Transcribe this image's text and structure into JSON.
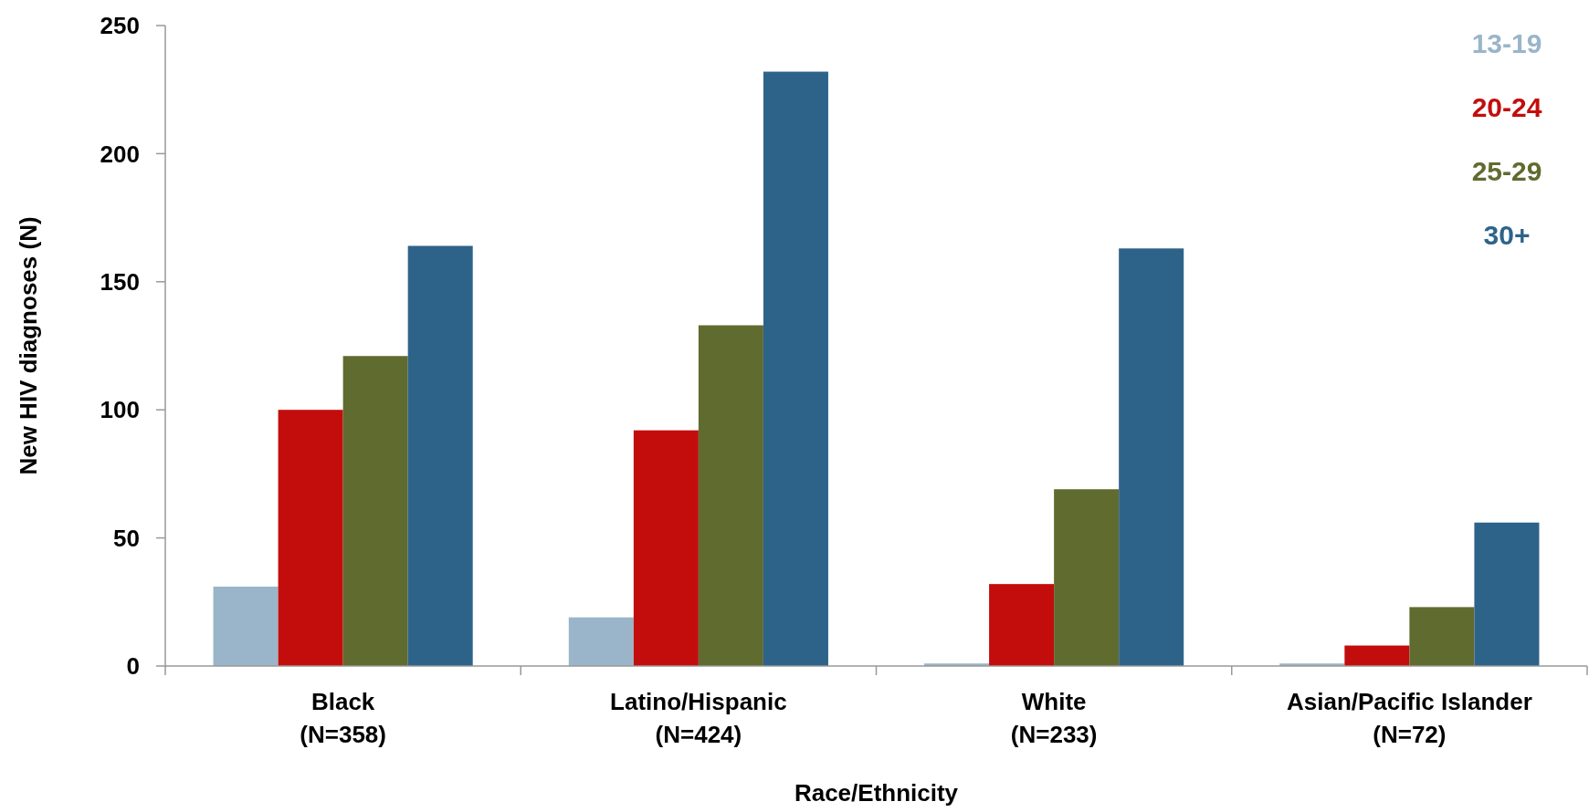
{
  "chart_data": {
    "type": "bar",
    "xlabel": "Race/Ethnicity",
    "ylabel": "New HIV diagnoses (N)",
    "categories": [
      "Black\n(N=358)",
      "Latino/Hispanic\n(N=424)",
      "White\n(N=233)",
      "Asian/Pacific Islander\n(N=72)"
    ],
    "series": [
      {
        "name": "13-19",
        "color": "#9ab5c9",
        "values": [
          31,
          19,
          1,
          1
        ]
      },
      {
        "name": "20-24",
        "color": "#c30d0d",
        "values": [
          100,
          92,
          32,
          8
        ]
      },
      {
        "name": "25-29",
        "color": "#606b2f",
        "values": [
          121,
          133,
          69,
          23
        ]
      },
      {
        "name": "30+",
        "color": "#2e6389",
        "values": [
          164,
          232,
          163,
          56
        ]
      }
    ],
    "ylim": [
      0,
      250
    ],
    "yticks": [
      0,
      50,
      100,
      150,
      200,
      250
    ],
    "legend": "top right"
  }
}
